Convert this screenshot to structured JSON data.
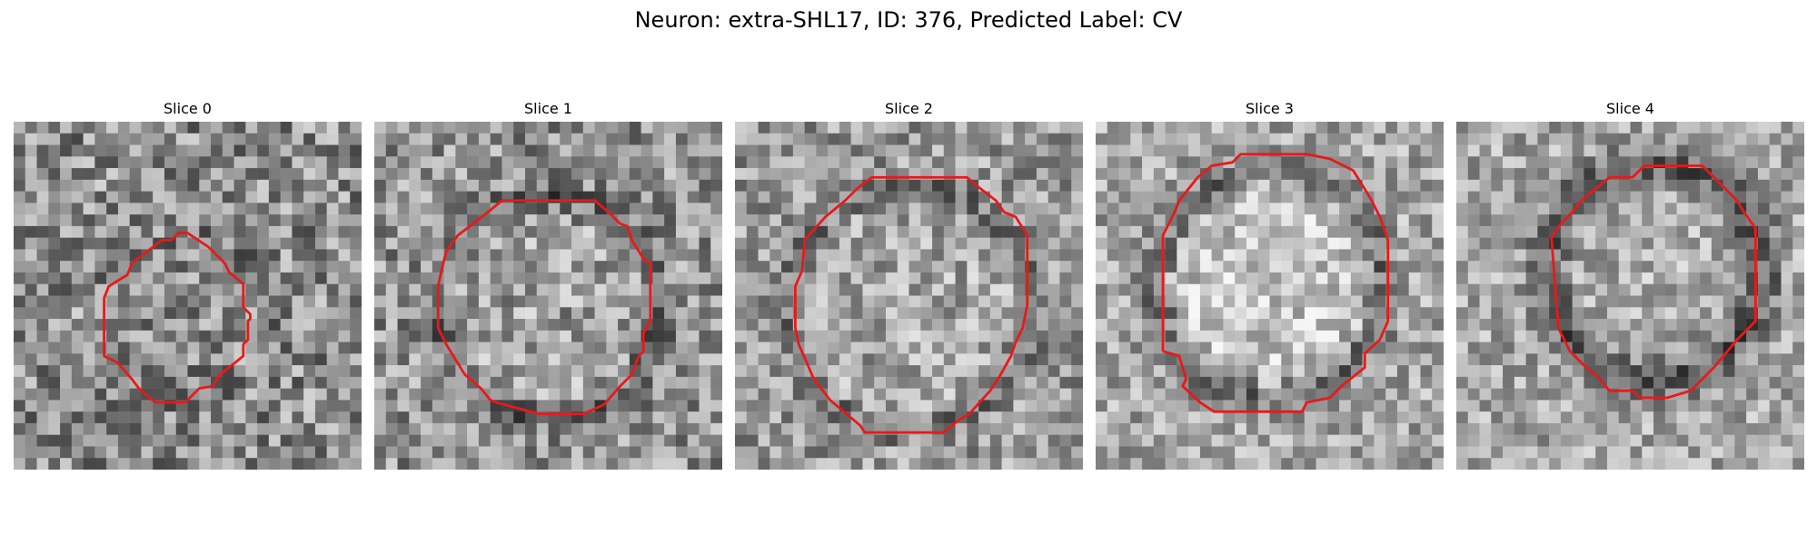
{
  "figure": {
    "title": "Neuron: extra-SHL17, ID: 376, Predicted Label: CV"
  },
  "panels": [
    {
      "title": "Slice 0",
      "outline_color": "#e8191a"
    },
    {
      "title": "Slice 1",
      "outline_color": "#e8191a"
    },
    {
      "title": "Slice 2",
      "outline_color": "#e8191a"
    },
    {
      "title": "Slice 3",
      "outline_color": "#e8191a"
    },
    {
      "title": "Slice 4",
      "outline_color": "#e8191a"
    }
  ]
}
